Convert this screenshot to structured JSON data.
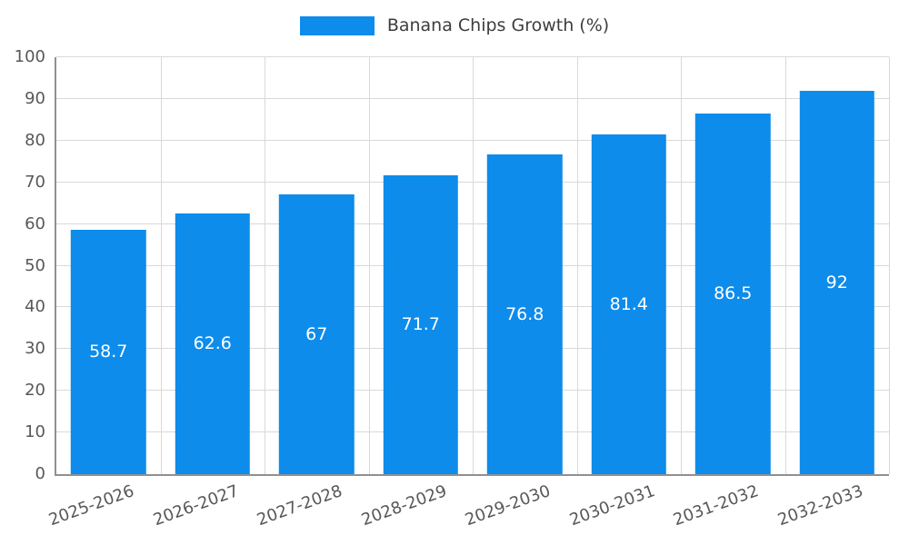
{
  "chart_data": {
    "type": "bar",
    "title": "Banana Chips Growth (%)",
    "legend": [
      "Banana Chips Growth (%)"
    ],
    "legend_position": "top-center",
    "categories": [
      "2025-2026",
      "2026-2027",
      "2027-2028",
      "2028-2029",
      "2029-2030",
      "2030-2031",
      "2031-2032",
      "2032-2033"
    ],
    "values": [
      58.7,
      62.6,
      67,
      71.7,
      76.8,
      81.4,
      86.5,
      92
    ],
    "value_labels": [
      "58.7",
      "62.6",
      "67",
      "71.7",
      "76.8",
      "81.4",
      "86.5",
      "92"
    ],
    "xlabel": "",
    "ylabel": "",
    "ylim": [
      0,
      100
    ],
    "yticks": [
      0,
      10,
      20,
      30,
      40,
      50,
      60,
      70,
      80,
      90,
      100
    ],
    "grid": true,
    "bar_width_fraction": 0.72,
    "colors": {
      "bar": "#0d8ceb",
      "value_label": "#ffffff",
      "gridline": "#d9d9d9",
      "axis": "#909090",
      "tick_label": "#585858",
      "legend_text": "#3d3d3d",
      "background": "#ffffff"
    }
  }
}
